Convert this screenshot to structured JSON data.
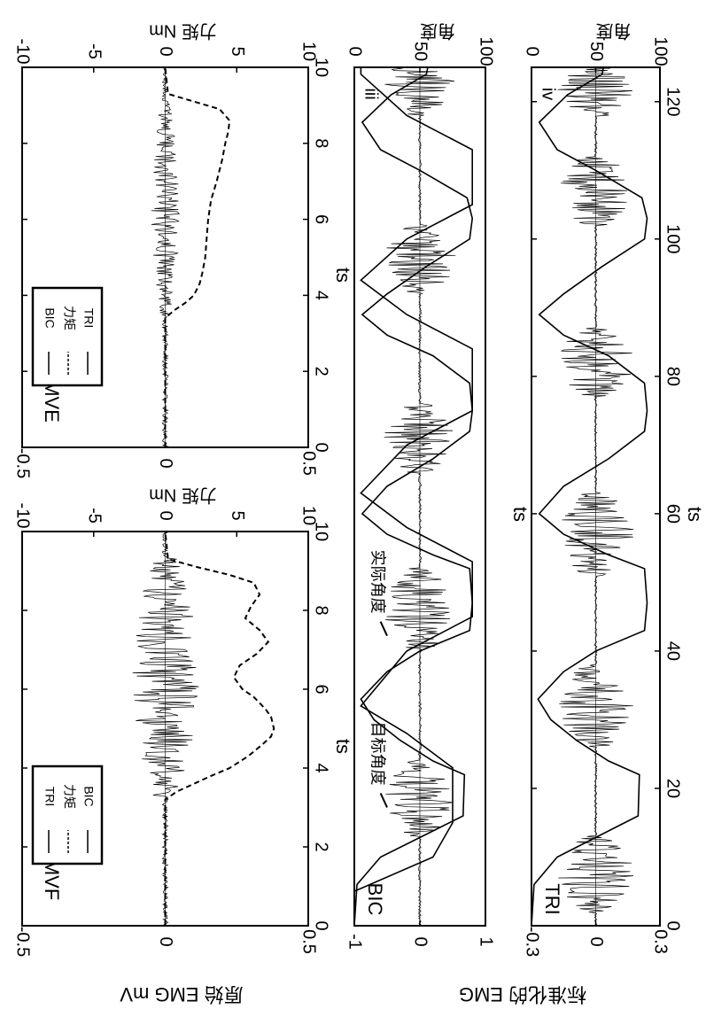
{
  "figure": {
    "rotation": "page rotated 90 degrees clockwise; text reads top-to-bottom",
    "outer_ylabel_top": "原始 EMG mV",
    "outer_ylabel_bottom": "标准化的 EMG",
    "colors": {
      "ink": "#000000",
      "background": "#ffffff"
    }
  },
  "chart_data": [
    {
      "id": "IMVF",
      "type": "line",
      "title": "IMVF",
      "xlabel": "ts",
      "ylabel_left": "原始 EMG mV",
      "ylabel_right": "力矩 Nm",
      "xlim": [
        0,
        10
      ],
      "ylim_left": [
        -0.5,
        0.5
      ],
      "ylim_right": [
        -10,
        10
      ],
      "x_ticks": [
        "0",
        "2",
        "4",
        "6",
        "8",
        "10"
      ],
      "y_ticks_left": [
        "0.5",
        "0",
        "-0.5"
      ],
      "y_ticks_right": [
        "10",
        "5",
        "0",
        "-5",
        "-10"
      ],
      "legend": {
        "placement": "top-left",
        "entries": [
          "TRI",
          "力矩",
          "BIC"
        ]
      },
      "emg_burst_interval": [
        3.3,
        9.3
      ],
      "emg_peak_amplitude_mV": 0.12,
      "torque_series": {
        "name": "力矩",
        "style": "dashed",
        "x": [
          0,
          3.2,
          3.4,
          3.6,
          3.8,
          4.0,
          4.3,
          4.6,
          4.8,
          5.0,
          5.3,
          5.5,
          5.8,
          6.0,
          6.3,
          6.6,
          6.9,
          7.2,
          7.5,
          7.8,
          8.1,
          8.4,
          8.7,
          8.9,
          9.1,
          9.3,
          10
        ],
        "y": [
          0,
          0,
          0.8,
          2.0,
          3.2,
          4.5,
          5.8,
          6.8,
          7.4,
          7.6,
          7.4,
          7.0,
          6.2,
          5.4,
          4.8,
          5.2,
          6.4,
          7.2,
          6.6,
          5.6,
          6.0,
          6.6,
          6.2,
          4.5,
          2.2,
          0.2,
          0
        ]
      }
    },
    {
      "id": "IMVE",
      "type": "line",
      "title": "IMVE",
      "xlabel": "ts",
      "ylabel_left": "原始 EMG mV",
      "ylabel_right": "力矩 Nm",
      "xlim": [
        0,
        10
      ],
      "ylim_left": [
        -0.5,
        0.5
      ],
      "ylim_right": [
        -10,
        10
      ],
      "x_ticks": [
        "0",
        "2",
        "4",
        "6",
        "8",
        "10"
      ],
      "y_ticks_left": [
        "0.5",
        "0",
        "-0.5"
      ],
      "y_ticks_right": [
        "10",
        "5",
        "0",
        "-5",
        "-10"
      ],
      "legend": {
        "placement": "top-left",
        "entries": [
          "BIC",
          "力矩",
          "TRI"
        ]
      },
      "emg_burst_interval": [
        3.5,
        9.1
      ],
      "emg_peak_amplitude_mV": 0.05,
      "torque_series": {
        "name": "力矩",
        "style": "dashed",
        "x": [
          0,
          3.4,
          3.6,
          3.8,
          4.0,
          4.3,
          4.6,
          5.0,
          5.5,
          6.0,
          6.5,
          7.0,
          7.3,
          7.6,
          8.0,
          8.3,
          8.6,
          8.9,
          9.1,
          9.3,
          10
        ],
        "y": [
          0,
          0,
          0.6,
          1.4,
          2.0,
          2.4,
          2.6,
          2.8,
          2.9,
          3.0,
          3.2,
          3.6,
          3.8,
          4.0,
          4.2,
          4.4,
          4.5,
          3.8,
          2.0,
          0.2,
          0
        ]
      }
    },
    {
      "id": "iii",
      "panel_label": "iii",
      "muscle": "BIC",
      "type": "line",
      "xlabel": "ts",
      "ylabel_left": "标准化的 EMG",
      "ylabel_right": "角度",
      "xlim": [
        0,
        125
      ],
      "ylim_left": [
        -1,
        1
      ],
      "ylim_right": [
        0,
        100
      ],
      "y_ticks_left": [
        "1",
        "0",
        "-1"
      ],
      "y_ticks_right": [
        "100",
        "50",
        "0"
      ],
      "annotations": [
        "目标角度",
        "实际角度"
      ],
      "emg_bursts": [
        [
          13,
          24
        ],
        [
          40,
          52
        ],
        [
          66,
          76
        ],
        [
          92,
          102
        ],
        [
          118,
          129
        ]
      ],
      "emg_peak_amplitude": 0.55,
      "target_angle": {
        "name": "目标角度",
        "x": [
          0,
          5,
          10,
          15,
          23,
          28,
          32,
          40,
          45,
          53,
          58,
          63,
          70,
          75,
          84,
          89,
          94,
          100,
          105,
          113,
          118,
          124,
          125
        ],
        "y": [
          0,
          0,
          60,
          75,
          75,
          40,
          5,
          40,
          90,
          90,
          40,
          5,
          40,
          90,
          90,
          40,
          5,
          40,
          90,
          90,
          40,
          5,
          5
        ]
      },
      "actual_angle": {
        "name": "实际角度",
        "x": [
          0,
          6,
          10,
          14,
          16,
          22,
          24,
          27,
          30,
          33,
          37,
          40,
          43,
          47,
          52,
          54,
          57,
          60,
          64,
          68,
          72,
          75,
          79,
          83,
          86,
          89,
          92,
          96,
          100,
          103,
          106,
          110,
          113,
          117,
          121,
          124,
          125
        ],
        "y": [
          0,
          2,
          20,
          62,
          83,
          84,
          60,
          35,
          15,
          5,
          25,
          50,
          88,
          90,
          88,
          60,
          25,
          6,
          25,
          60,
          88,
          90,
          88,
          60,
          25,
          6,
          25,
          55,
          88,
          90,
          86,
          50,
          20,
          6,
          28,
          55,
          56
        ]
      }
    },
    {
      "id": "iv",
      "panel_label": "iv",
      "muscle": "TRI",
      "type": "line",
      "xlabel": "ts",
      "ylabel_left": "标准化的 EMG",
      "ylabel_right": "角度",
      "xlim": [
        0,
        125
      ],
      "ylim_left": [
        -0.3,
        0.3
      ],
      "ylim_right": [
        0,
        100
      ],
      "x_ticks": [
        "0",
        "20",
        "40",
        "60",
        "80",
        "100",
        "120"
      ],
      "y_ticks_left": [
        "0.3",
        "0",
        "-0.3"
      ],
      "y_ticks_right": [
        "100",
        "50",
        "0"
      ],
      "emg_bursts": [
        [
          2,
          13
        ],
        [
          26,
          38
        ],
        [
          51,
          63
        ],
        [
          77,
          87
        ],
        [
          102,
          112
        ],
        [
          118,
          125
        ]
      ],
      "emg_peak_amplitude": 0.18,
      "actual_angle": {
        "name": "角度",
        "x": [
          0,
          6,
          10,
          14,
          16,
          22,
          24,
          27,
          30,
          33,
          37,
          40,
          43,
          47,
          52,
          54,
          57,
          60,
          64,
          68,
          72,
          75,
          79,
          83,
          86,
          89,
          92,
          96,
          100,
          103,
          106,
          110,
          113,
          117,
          121,
          124,
          125
        ],
        "y": [
          0,
          2,
          20,
          62,
          83,
          84,
          60,
          35,
          15,
          5,
          25,
          50,
          88,
          90,
          88,
          60,
          25,
          6,
          25,
          60,
          88,
          90,
          88,
          60,
          25,
          6,
          25,
          55,
          88,
          90,
          86,
          50,
          20,
          6,
          28,
          55,
          56
        ]
      }
    }
  ]
}
